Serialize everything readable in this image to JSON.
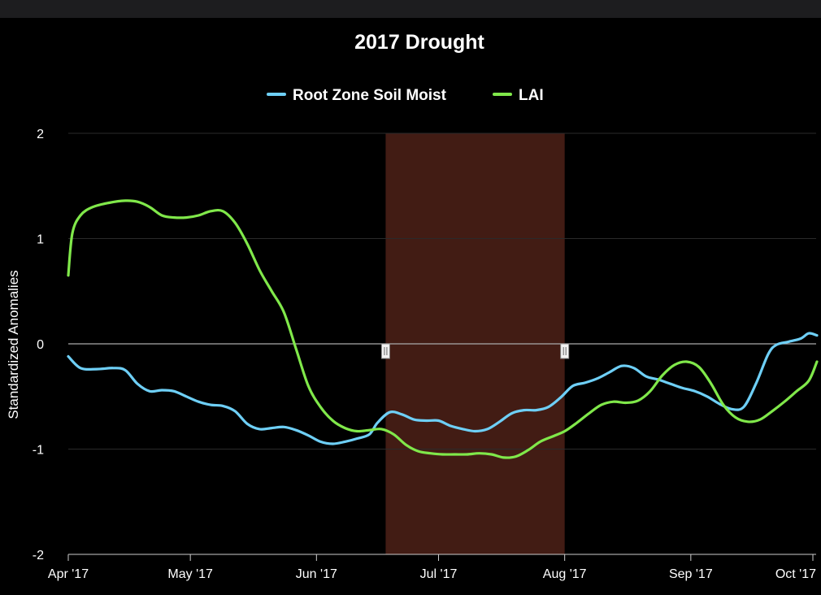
{
  "chart_data": {
    "type": "line",
    "title": "2017 Drought",
    "ylabel": "Standardized Anomalies",
    "xlabel": "",
    "ylim": [
      -2,
      2
    ],
    "yticks": [
      2,
      1,
      0,
      -1,
      -2
    ],
    "xticks": [
      {
        "label": "Apr '17",
        "date": "2017-04-01"
      },
      {
        "label": "May '17",
        "date": "2017-05-01"
      },
      {
        "label": "Jun '17",
        "date": "2017-06-01"
      },
      {
        "label": "Jul '17",
        "date": "2017-07-01"
      },
      {
        "label": "Aug '17",
        "date": "2017-08-01"
      },
      {
        "label": "Sep '17",
        "date": "2017-09-01"
      },
      {
        "label": "Oct '17",
        "date": "2017-10-01"
      }
    ],
    "highlight_band": {
      "start": "2017-06-18",
      "end": "2017-08-01",
      "color": "#421c14"
    },
    "grid": true,
    "legend_position": "top-center",
    "colors": {
      "background": "#000000",
      "grid": "#2a2a2a",
      "zero_line": "#aaaaaa"
    },
    "series": [
      {
        "name": "Root Zone Soil Moist",
        "color": "#6ecff6",
        "points": [
          [
            "2017-04-01",
            -0.12
          ],
          [
            "2017-04-04",
            -0.23
          ],
          [
            "2017-04-08",
            -0.24
          ],
          [
            "2017-04-12",
            -0.23
          ],
          [
            "2017-04-15",
            -0.25
          ],
          [
            "2017-04-18",
            -0.38
          ],
          [
            "2017-04-21",
            -0.45
          ],
          [
            "2017-04-24",
            -0.44
          ],
          [
            "2017-04-27",
            -0.45
          ],
          [
            "2017-04-30",
            -0.5
          ],
          [
            "2017-05-03",
            -0.55
          ],
          [
            "2017-05-06",
            -0.58
          ],
          [
            "2017-05-09",
            -0.59
          ],
          [
            "2017-05-12",
            -0.64
          ],
          [
            "2017-05-15",
            -0.76
          ],
          [
            "2017-05-18",
            -0.81
          ],
          [
            "2017-05-21",
            -0.8
          ],
          [
            "2017-05-24",
            -0.79
          ],
          [
            "2017-05-27",
            -0.82
          ],
          [
            "2017-05-30",
            -0.87
          ],
          [
            "2017-06-02",
            -0.93
          ],
          [
            "2017-06-05",
            -0.95
          ],
          [
            "2017-06-08",
            -0.93
          ],
          [
            "2017-06-11",
            -0.9
          ],
          [
            "2017-06-14",
            -0.86
          ],
          [
            "2017-06-16",
            -0.75
          ],
          [
            "2017-06-19",
            -0.65
          ],
          [
            "2017-06-22",
            -0.67
          ],
          [
            "2017-06-25",
            -0.72
          ],
          [
            "2017-06-28",
            -0.73
          ],
          [
            "2017-07-01",
            -0.73
          ],
          [
            "2017-07-04",
            -0.78
          ],
          [
            "2017-07-07",
            -0.81
          ],
          [
            "2017-07-10",
            -0.83
          ],
          [
            "2017-07-13",
            -0.81
          ],
          [
            "2017-07-16",
            -0.74
          ],
          [
            "2017-07-19",
            -0.66
          ],
          [
            "2017-07-22",
            -0.63
          ],
          [
            "2017-07-25",
            -0.63
          ],
          [
            "2017-07-28",
            -0.6
          ],
          [
            "2017-07-31",
            -0.51
          ],
          [
            "2017-08-03",
            -0.4
          ],
          [
            "2017-08-06",
            -0.37
          ],
          [
            "2017-08-09",
            -0.33
          ],
          [
            "2017-08-12",
            -0.27
          ],
          [
            "2017-08-15",
            -0.21
          ],
          [
            "2017-08-18",
            -0.23
          ],
          [
            "2017-08-21",
            -0.31
          ],
          [
            "2017-08-24",
            -0.34
          ],
          [
            "2017-08-27",
            -0.38
          ],
          [
            "2017-08-30",
            -0.42
          ],
          [
            "2017-09-02",
            -0.45
          ],
          [
            "2017-09-05",
            -0.5
          ],
          [
            "2017-09-08",
            -0.57
          ],
          [
            "2017-09-11",
            -0.62
          ],
          [
            "2017-09-14",
            -0.6
          ],
          [
            "2017-09-17",
            -0.38
          ],
          [
            "2017-09-20",
            -0.1
          ],
          [
            "2017-09-22",
            -0.01
          ],
          [
            "2017-09-25",
            0.02
          ],
          [
            "2017-09-28",
            0.05
          ],
          [
            "2017-09-30",
            0.1
          ],
          [
            "2017-10-02",
            0.08
          ]
        ]
      },
      {
        "name": "LAI",
        "color": "#80e84a",
        "points": [
          [
            "2017-04-01",
            0.65
          ],
          [
            "2017-04-02",
            1.05
          ],
          [
            "2017-04-04",
            1.22
          ],
          [
            "2017-04-07",
            1.3
          ],
          [
            "2017-04-11",
            1.34
          ],
          [
            "2017-04-15",
            1.36
          ],
          [
            "2017-04-18",
            1.35
          ],
          [
            "2017-04-21",
            1.3
          ],
          [
            "2017-04-24",
            1.22
          ],
          [
            "2017-04-27",
            1.2
          ],
          [
            "2017-04-30",
            1.2
          ],
          [
            "2017-05-03",
            1.22
          ],
          [
            "2017-05-06",
            1.26
          ],
          [
            "2017-05-09",
            1.26
          ],
          [
            "2017-05-12",
            1.15
          ],
          [
            "2017-05-15",
            0.95
          ],
          [
            "2017-05-18",
            0.7
          ],
          [
            "2017-05-21",
            0.5
          ],
          [
            "2017-05-24",
            0.3
          ],
          [
            "2017-05-27",
            -0.05
          ],
          [
            "2017-05-30",
            -0.4
          ],
          [
            "2017-06-02",
            -0.6
          ],
          [
            "2017-06-05",
            -0.73
          ],
          [
            "2017-06-08",
            -0.8
          ],
          [
            "2017-06-11",
            -0.83
          ],
          [
            "2017-06-14",
            -0.82
          ],
          [
            "2017-06-17",
            -0.81
          ],
          [
            "2017-06-20",
            -0.86
          ],
          [
            "2017-06-23",
            -0.96
          ],
          [
            "2017-06-26",
            -1.02
          ],
          [
            "2017-06-29",
            -1.04
          ],
          [
            "2017-07-02",
            -1.05
          ],
          [
            "2017-07-05",
            -1.05
          ],
          [
            "2017-07-08",
            -1.05
          ],
          [
            "2017-07-11",
            -1.04
          ],
          [
            "2017-07-14",
            -1.05
          ],
          [
            "2017-07-17",
            -1.08
          ],
          [
            "2017-07-20",
            -1.07
          ],
          [
            "2017-07-23",
            -1.01
          ],
          [
            "2017-07-26",
            -0.93
          ],
          [
            "2017-07-29",
            -0.88
          ],
          [
            "2017-08-01",
            -0.83
          ],
          [
            "2017-08-04",
            -0.75
          ],
          [
            "2017-08-07",
            -0.66
          ],
          [
            "2017-08-10",
            -0.58
          ],
          [
            "2017-08-13",
            -0.55
          ],
          [
            "2017-08-16",
            -0.56
          ],
          [
            "2017-08-19",
            -0.54
          ],
          [
            "2017-08-22",
            -0.45
          ],
          [
            "2017-08-25",
            -0.3
          ],
          [
            "2017-08-28",
            -0.2
          ],
          [
            "2017-08-31",
            -0.17
          ],
          [
            "2017-09-03",
            -0.22
          ],
          [
            "2017-09-06",
            -0.38
          ],
          [
            "2017-09-09",
            -0.58
          ],
          [
            "2017-09-12",
            -0.7
          ],
          [
            "2017-09-15",
            -0.74
          ],
          [
            "2017-09-18",
            -0.72
          ],
          [
            "2017-09-21",
            -0.64
          ],
          [
            "2017-09-24",
            -0.55
          ],
          [
            "2017-09-27",
            -0.45
          ],
          [
            "2017-09-30",
            -0.35
          ],
          [
            "2017-10-02",
            -0.17
          ]
        ]
      }
    ]
  }
}
